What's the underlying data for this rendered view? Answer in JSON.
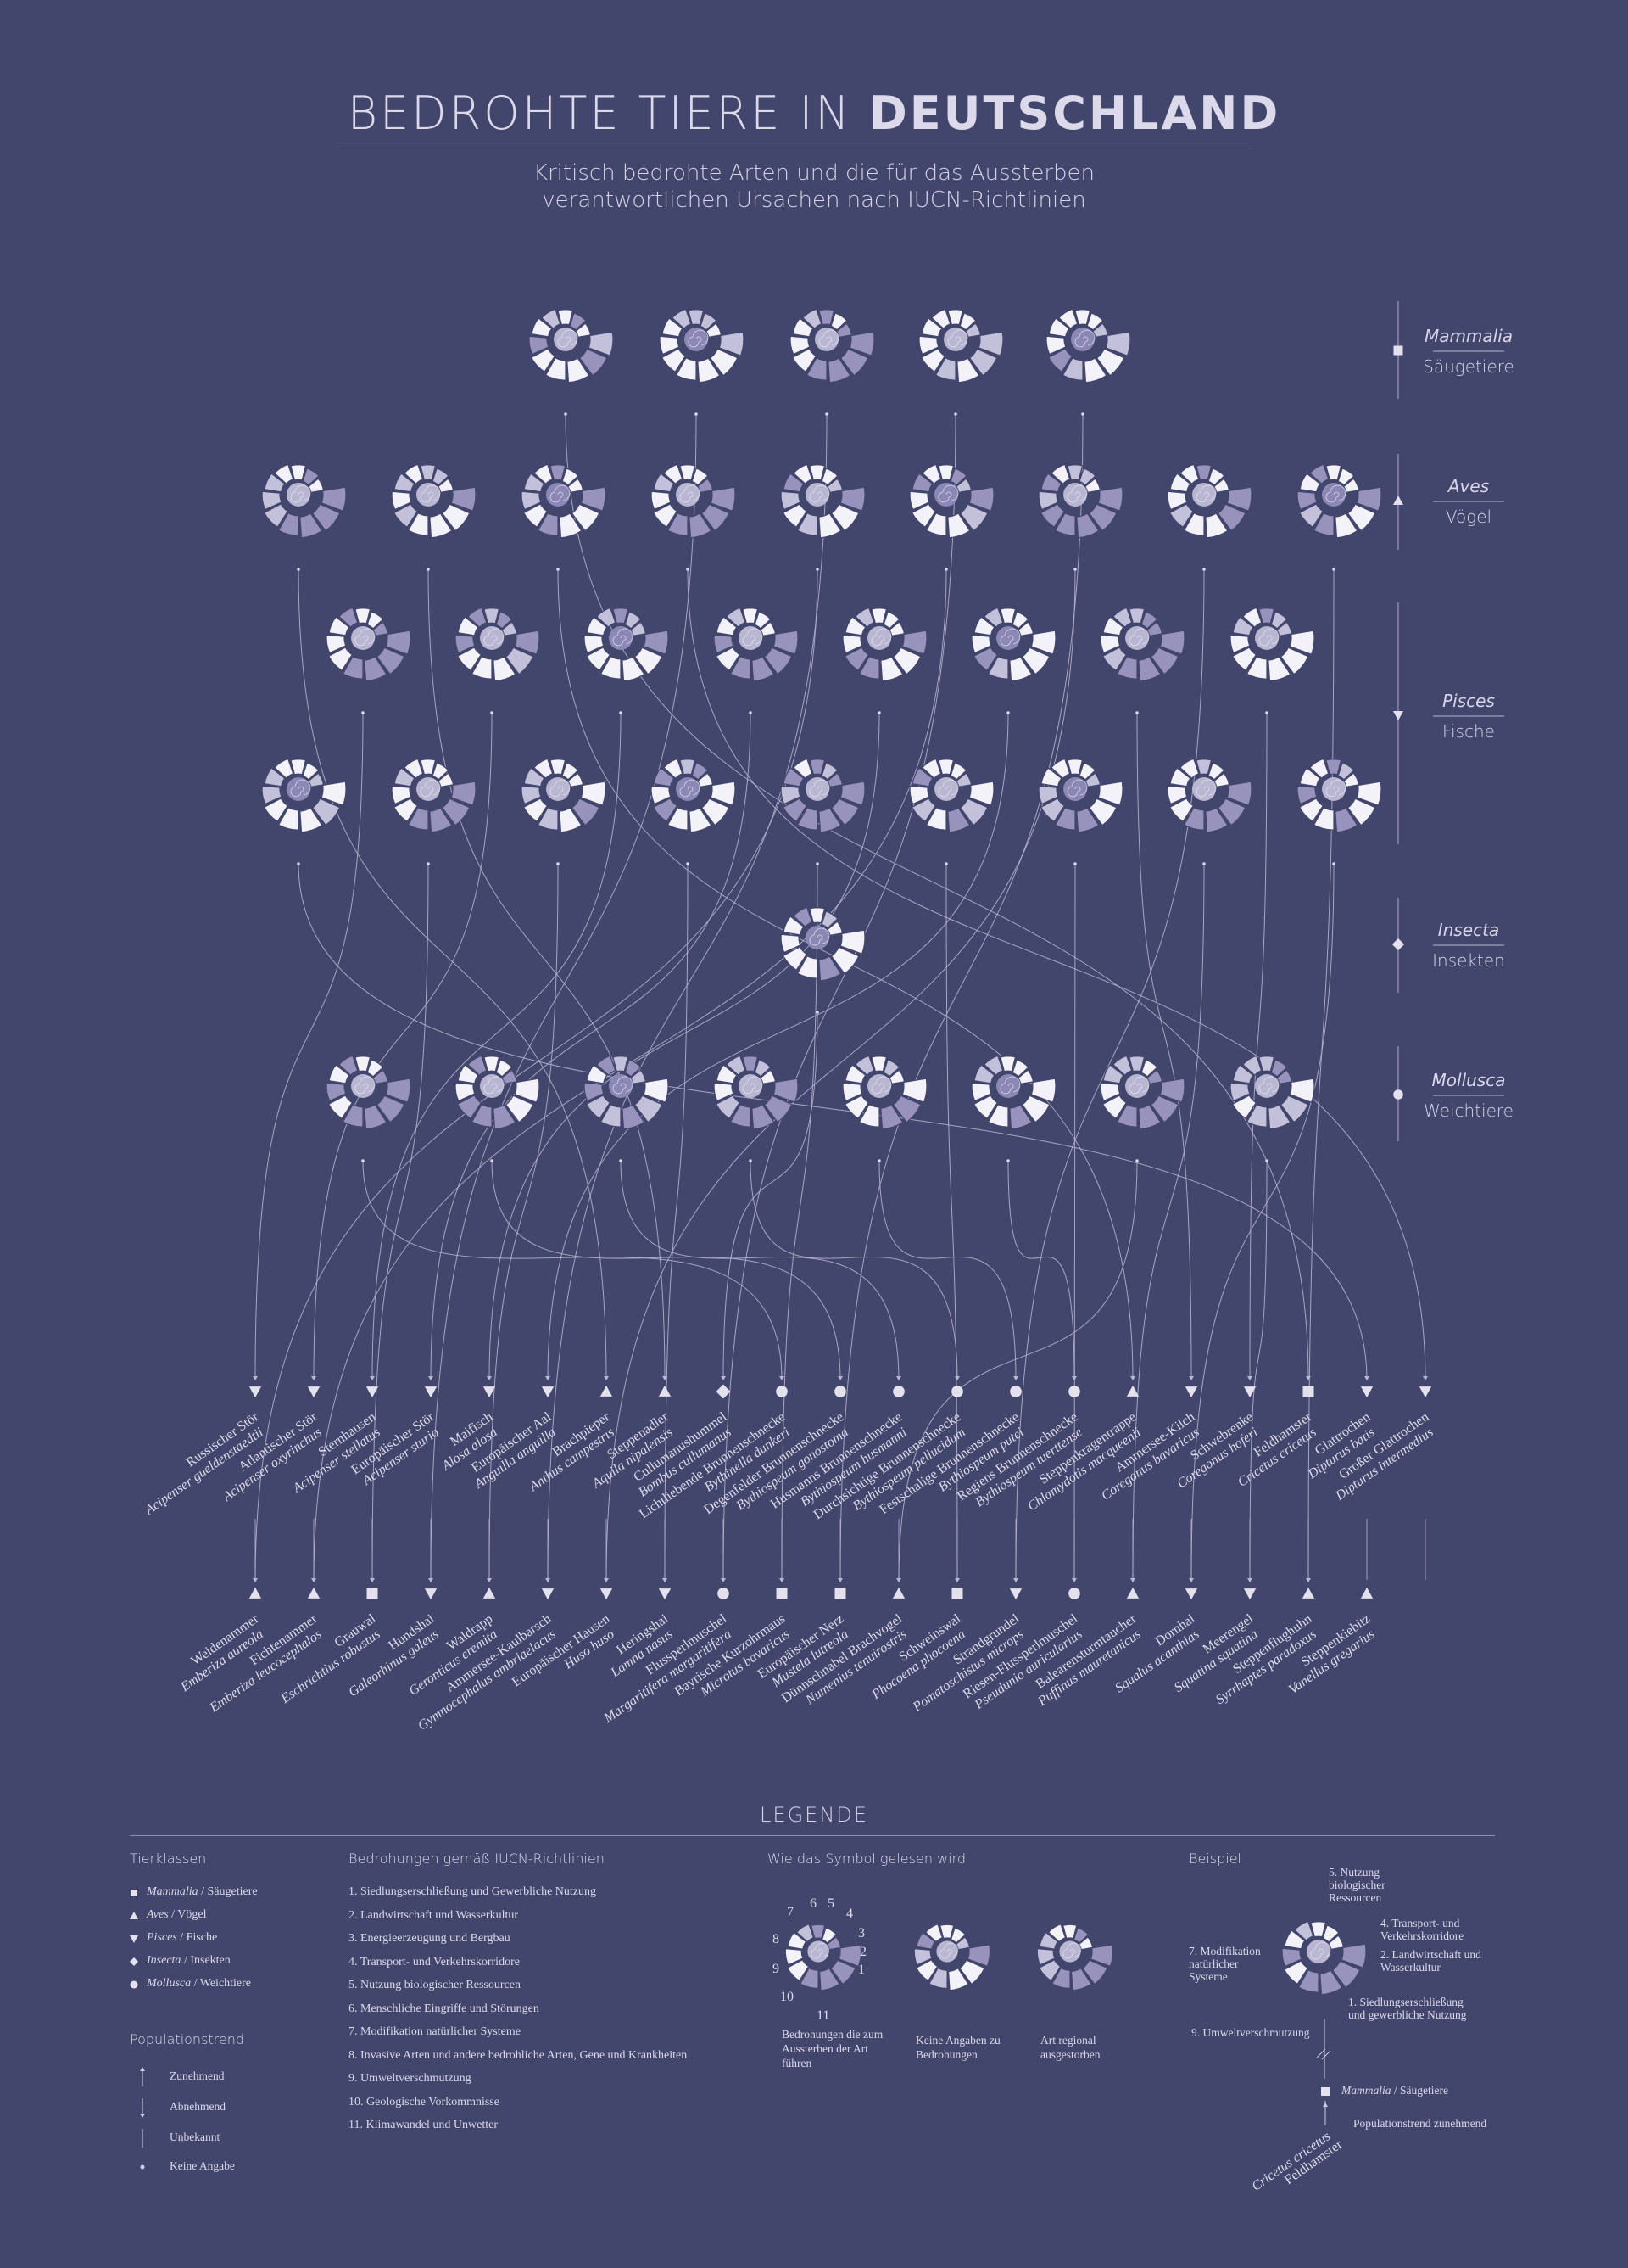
{
  "title": {
    "light": "BEDROHTE TIERE IN ",
    "bold": "DEUTSCHLAND"
  },
  "subtitle": {
    "line1": "Kritisch bedrohte Arten und die für das Aussterben",
    "line2": "verantwortlichen Ursachen nach IUCN-Richtlinien"
  },
  "classes": [
    {
      "latin": "Mammalia",
      "german": "Säugetiere",
      "marker": "square"
    },
    {
      "latin": "Aves",
      "german": "Vögel",
      "marker": "triangle-up"
    },
    {
      "latin": "Pisces",
      "german": "Fische",
      "marker": "triangle-down"
    },
    {
      "latin": "Insecta",
      "german": "Insekten",
      "marker": "diamond"
    },
    {
      "latin": "Mollusca",
      "german": "Weichtiere",
      "marker": "circle"
    }
  ],
  "species_row1": [
    {
      "latin": "Acipenser gueldenstaedtii",
      "german": "Russischer Stör",
      "marker": "triangle-down"
    },
    {
      "latin": "Acipenser oxyrinchus",
      "german": "Atlantischer Stör",
      "marker": "triangle-down"
    },
    {
      "latin": "Acipenser stellatus",
      "german": "Sternhausen",
      "marker": "triangle-down"
    },
    {
      "latin": "Acipenser sturio",
      "german": "Europäischer Stör",
      "marker": "triangle-down"
    },
    {
      "latin": "Alosa alosa",
      "german": "Maifisch",
      "marker": "triangle-down"
    },
    {
      "latin": "Anguilla anguilla",
      "german": "Europäischer Aal",
      "marker": "triangle-down"
    },
    {
      "latin": "Anthus campestris",
      "german": "Brachpieper",
      "marker": "triangle-up"
    },
    {
      "latin": "Aquila nipalensis",
      "german": "Steppenadler",
      "marker": "triangle-up"
    },
    {
      "latin": "Bombus cullumanus",
      "german": "Cullumanushummel",
      "marker": "diamond"
    },
    {
      "latin": "Bythinella dunkeri",
      "german": "Lichtliebende Brunnenschnecke",
      "marker": "circle"
    },
    {
      "latin": "Bythiospeum gonostoma",
      "german": "Degenfelder Brunnenschnecke",
      "marker": "circle"
    },
    {
      "latin": "Bythiospeum husmanni",
      "german": "Husmanns Brunnenschnecke",
      "marker": "circle"
    },
    {
      "latin": "Bythiospeum pellucidum",
      "german": "Durchsichtige Brunnenschnecke",
      "marker": "circle"
    },
    {
      "latin": "Bythiospeum putei",
      "german": "Festschalige Brunnenschnecke",
      "marker": "circle"
    },
    {
      "latin": "Bythiospeum tuerttense",
      "german": "Regiens Brunnenschnecke",
      "marker": "circle"
    },
    {
      "latin": "Chlamydotis macqueenii",
      "german": "Steppenkragentrappe",
      "marker": "triangle-up"
    },
    {
      "latin": "Coregonus bavaricus",
      "german": "Ammersee-Kilch",
      "marker": "triangle-down"
    },
    {
      "latin": "Coregonus hoferi",
      "german": "Schwebrenke",
      "marker": "triangle-down"
    },
    {
      "latin": "Cricetus cricetus",
      "german": "Feldhamster",
      "marker": "square"
    },
    {
      "latin": "Dipturus batis",
      "german": "Glattrochen",
      "marker": "triangle-down"
    },
    {
      "latin": "Dipturus intermedius",
      "german": "Großer Glattrochen",
      "marker": "triangle-down"
    }
  ],
  "species_row2": [
    {
      "latin": "Emberiza aureola",
      "german": "Weidenammer",
      "marker": "triangle-up"
    },
    {
      "latin": "Emberiza leucocephalos",
      "german": "Fichtenammer",
      "marker": "triangle-up"
    },
    {
      "latin": "Eschrichtius robustus",
      "german": "Grauwal",
      "marker": "square"
    },
    {
      "latin": "Galeorhinus galeus",
      "german": "Hundshai",
      "marker": "triangle-down"
    },
    {
      "latin": "Geronticus eremita",
      "german": "Waldrapp",
      "marker": "triangle-up"
    },
    {
      "latin": "Gymnocephalus ambriaelacus",
      "german": "Ammersee-Kaulbarsch",
      "marker": "triangle-down"
    },
    {
      "latin": "Huso huso",
      "german": "Europäischer Hausen",
      "marker": "triangle-down"
    },
    {
      "latin": "Lamna nasus",
      "german": "Heringshai",
      "marker": "triangle-down"
    },
    {
      "latin": "Margaritifera margaritifera",
      "german": "Flussperlmuschel",
      "marker": "circle"
    },
    {
      "latin": "Microtus bavaricus",
      "german": "Bayrische Kurzohrmaus",
      "marker": "square"
    },
    {
      "latin": "Mustela lutreola",
      "german": "Europäischer Nerz",
      "marker": "square"
    },
    {
      "latin": "Numenius tenuirostris",
      "german": "Dünnschnabel Brachvogel",
      "marker": "triangle-up"
    },
    {
      "latin": "Phocoena phocoena",
      "german": "Schweinswal",
      "marker": "square"
    },
    {
      "latin": "Pomatoschistus microps",
      "german": "Strandgrundel",
      "marker": "triangle-down"
    },
    {
      "latin": "Pseudunio auricularius",
      "german": "Riesen-Flussperlmuschel",
      "marker": "circle"
    },
    {
      "latin": "Puffinus mauretanicus",
      "german": "Balearensturmtaucher",
      "marker": "triangle-up"
    },
    {
      "latin": "Squalus acanthias",
      "german": "Dornhai",
      "marker": "triangle-down"
    },
    {
      "latin": "Squatina squatina",
      "german": "Meerengel",
      "marker": "triangle-down"
    },
    {
      "latin": "Syrrhaptes paradoxus",
      "german": "Steppenflughuhn",
      "marker": "triangle-up"
    },
    {
      "latin": "Vanellus gregarius",
      "german": "Steppenkiebitz",
      "marker": "triangle-up"
    }
  ],
  "legend": {
    "title": "LEGENDE",
    "classes_heading": "Tierklassen",
    "classes": [
      {
        "latin": "Mammalia",
        "german": " / Säugetiere"
      },
      {
        "latin": "Aves",
        "german": " / Vögel"
      },
      {
        "latin": "Pisces",
        "german": " / Fische"
      },
      {
        "latin": "Insecta",
        "german": " / Insekten"
      },
      {
        "latin": "Mollusca",
        "german": " / Weichtiere"
      }
    ],
    "trend_heading": "Populationstrend",
    "trends": [
      "Zunehmend",
      "Abnehmend",
      "Unbekannt",
      "Keine Angabe"
    ],
    "threats_heading": "Bedrohungen gemäß IUCN-Richtlinien",
    "threats": [
      "1. Siedlungserschließung und Gewerbliche Nutzung",
      "2. Landwirtschaft und Wasserkultur",
      "3. Energieerzeugung und Bergbau",
      "4. Transport- und Verkehrskorridore",
      "5. Nutzung biologischer Ressourcen",
      "6. Menschliche Eingriffe und Störungen",
      "7. Modifikation natürlicher Systeme",
      "8. Invasive Arten und andere bedrohliche Arten, Gene und Krankheiten",
      "9. Umweltverschmutzung",
      "10. Geologische Vorkommnisse",
      "11. Klimawandel und Unwetter"
    ],
    "read_heading": "Wie das Symbol gelesen wird",
    "read_captions": [
      "Bedrohungen die zum Aussterben der Art führen",
      "Keine Angaben zu Bedrohungen",
      "Art regional ausgestorben"
    ],
    "example_heading": "Beispiel",
    "example_labels": {
      "l5": "5. Nutzung biologischer Ressourcen",
      "l4": "4. Transport- und Verkehrskorridore",
      "l2": "2. Landwirtschaft und Wasserkultur",
      "l1": "1. Siedlungserschließung und gewerbliche Nutzung",
      "l7": "7. Modifikation natürlicher Systeme",
      "l9": "9. Umweltverschmutzung",
      "cls_latin": "Mammalia",
      "cls_german": " / Säugetiere",
      "trend": "Populationstrend zunehmend",
      "sp_latin": "Cricetus cricetus",
      "sp_german": "Feldhamster"
    }
  },
  "colors": {
    "background": "#42456c",
    "petal_light": "#f3f2f8",
    "petal_mid": "#c3c0da",
    "petal_dark": "#9893bd",
    "line": "#b9b7d3"
  }
}
